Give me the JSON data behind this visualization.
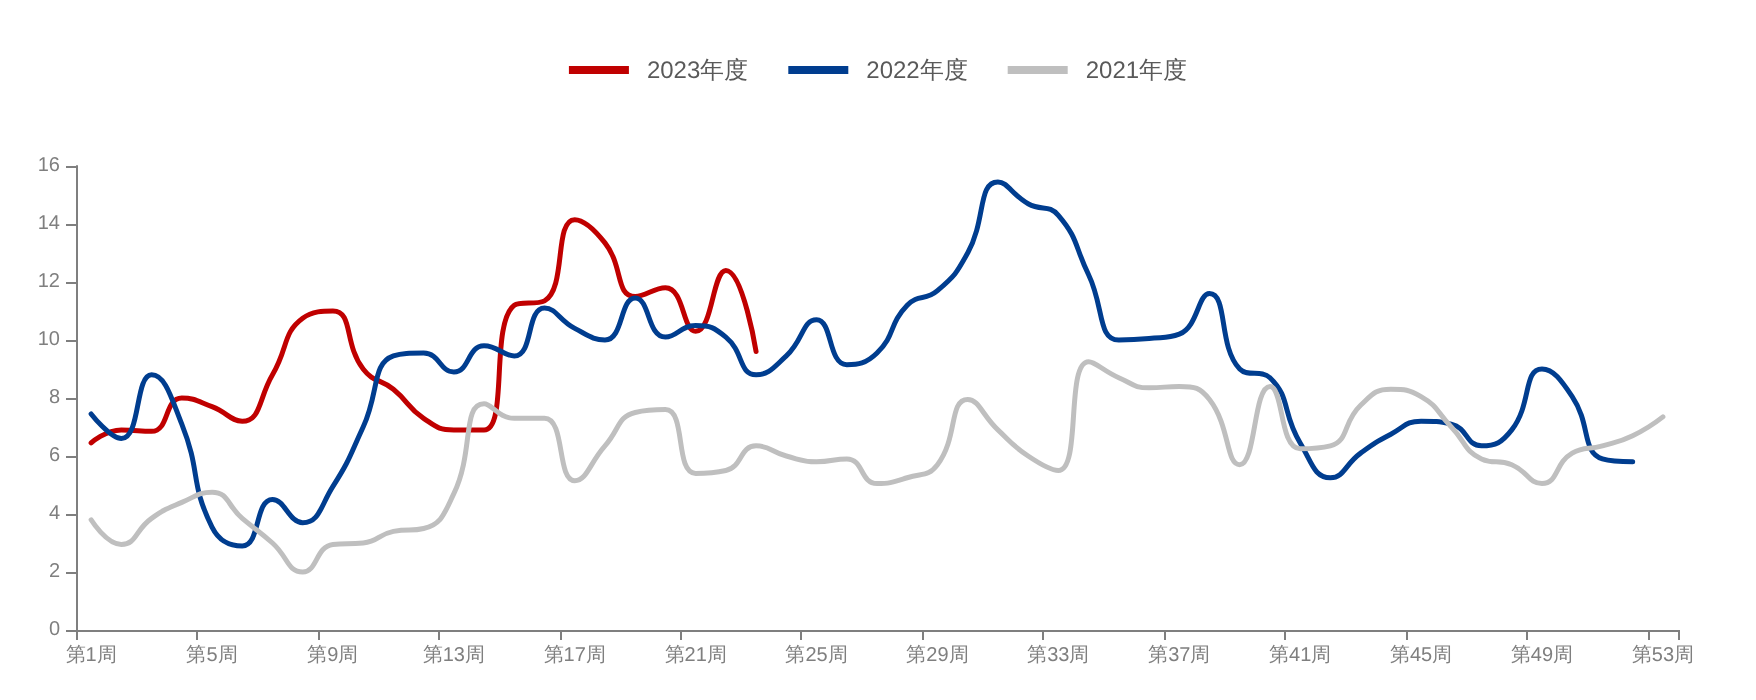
{
  "chart_data": {
    "type": "line",
    "categories": [
      "第1周",
      null,
      null,
      null,
      "第5周",
      null,
      null,
      null,
      "第9周",
      null,
      null,
      null,
      "第13周",
      null,
      null,
      null,
      "第17周",
      null,
      null,
      null,
      "第21周",
      null,
      null,
      null,
      "第25周",
      null,
      null,
      null,
      "第29周",
      null,
      null,
      null,
      "第33周",
      null,
      null,
      null,
      "第37周",
      null,
      null,
      null,
      "第41周",
      null,
      null,
      null,
      "第45周",
      null,
      null,
      null,
      "第49周",
      null,
      null,
      null,
      "第53周"
    ],
    "series": [
      {
        "name": "2023年度",
        "color": "#c00000",
        "values": [
          6.45,
          6.9,
          6.85,
          8.0,
          7.7,
          7.2,
          8.8,
          10.75,
          11.0,
          9.0,
          8.3,
          7.3,
          6.9,
          6.9,
          11.2,
          11.35,
          14.15,
          13.35,
          11.5,
          11.8,
          10.3,
          12.4,
          9.6,
          null,
          null,
          null,
          null,
          null,
          null,
          null,
          null,
          null,
          null,
          null,
          null,
          null,
          null,
          null,
          null,
          null,
          null,
          null,
          null,
          null,
          null,
          null,
          null,
          null,
          null,
          null,
          null,
          null,
          null
        ]
      },
      {
        "name": "2022年度",
        "color": "#003d8f",
        "values": [
          7.45,
          6.6,
          8.8,
          7.1,
          3.55,
          2.9,
          4.5,
          3.7,
          4.95,
          7.0,
          9.45,
          9.55,
          8.9,
          9.8,
          9.45,
          11.1,
          10.4,
          10.0,
          11.45,
          10.1,
          10.5,
          10.1,
          8.8,
          9.45,
          10.7,
          9.15,
          9.55,
          11.2,
          11.7,
          13.0,
          15.45,
          14.7,
          14.3,
          12.25,
          10.0,
          10.05,
          10.2,
          11.6,
          9.0,
          8.7,
          6.45,
          5.25,
          6.1,
          6.75,
          7.2,
          7.1,
          6.35,
          6.9,
          9.0,
          8.05,
          5.9,
          5.8,
          null
        ]
      },
      {
        "name": "2021年度",
        "color": "#bfbfbf",
        "values": [
          3.8,
          2.95,
          3.85,
          4.4,
          4.75,
          3.85,
          3.0,
          2.0,
          2.95,
          3.0,
          3.4,
          3.5,
          4.7,
          7.8,
          7.3,
          7.3,
          5.15,
          6.35,
          7.5,
          7.6,
          5.4,
          5.5,
          6.35,
          6.0,
          5.8,
          5.9,
          5.05,
          5.25,
          5.7,
          7.95,
          6.9,
          6.0,
          5.5,
          9.25,
          8.7,
          8.35,
          8.4,
          7.95,
          5.7,
          8.4,
          6.25,
          6.35,
          7.75,
          8.3,
          8.05,
          7.0,
          5.9,
          5.7,
          5.05,
          6.1,
          6.35,
          6.7,
          7.35
        ]
      }
    ],
    "ylim": [
      0,
      16
    ],
    "yticks": [
      0,
      2,
      4,
      6,
      8,
      10,
      12,
      14,
      16
    ],
    "grid": false,
    "legend": "top",
    "marker": "none",
    "line_style": "solid"
  }
}
